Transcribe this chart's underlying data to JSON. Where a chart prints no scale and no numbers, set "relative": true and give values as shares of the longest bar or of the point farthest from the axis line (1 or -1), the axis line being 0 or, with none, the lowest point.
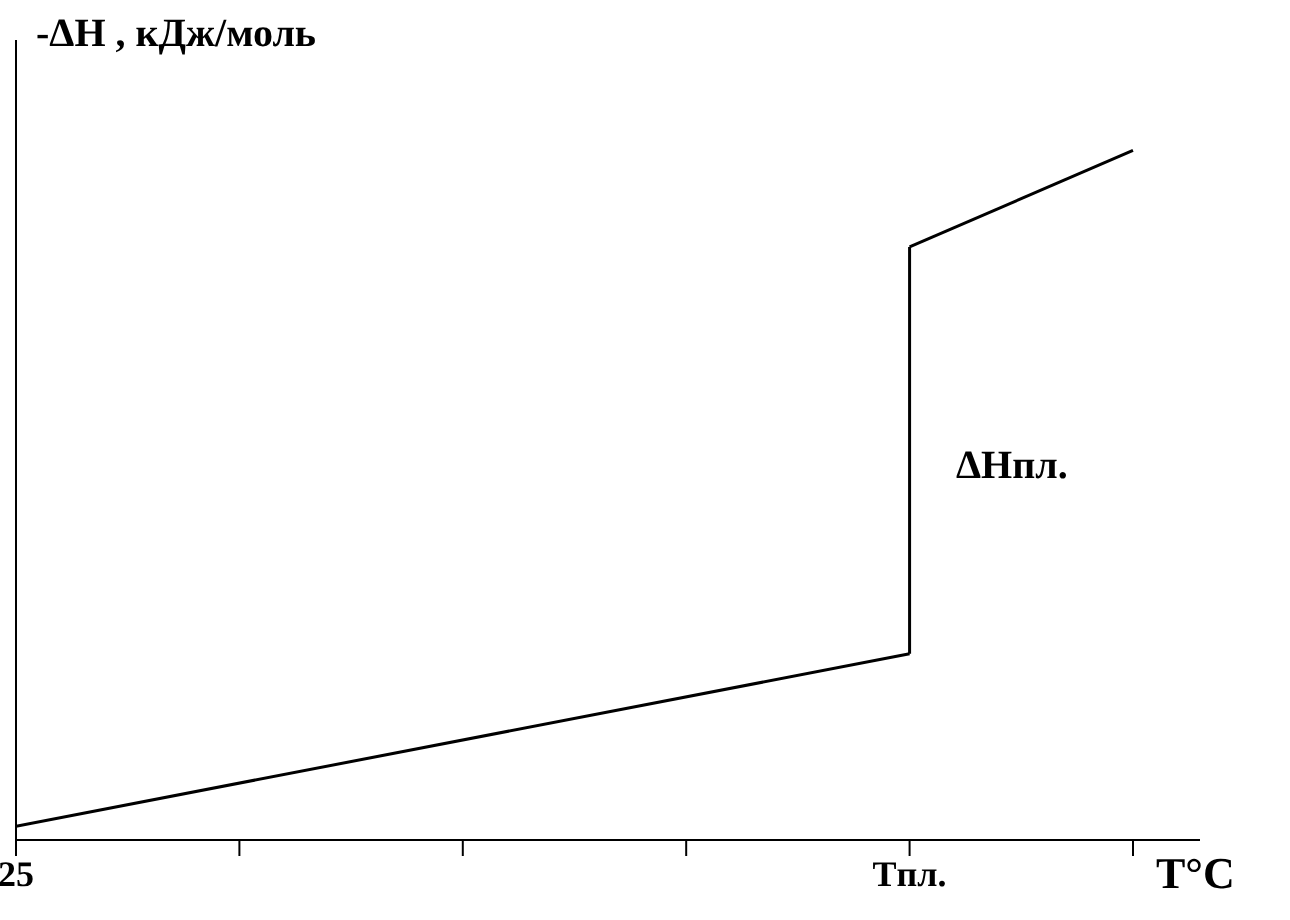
{
  "chart_data": {
    "type": "line",
    "relative": true,
    "ylabel": "-ΔH , кДж/моль",
    "xlabel": "T°C",
    "categories": [
      "25",
      null,
      null,
      null,
      "Tпл.",
      null
    ],
    "series": [
      {
        "color": "#000000",
        "values": [
          0.02,
          null,
          null,
          null,
          0.27,
          null
        ]
      },
      {
        "color": "#000000",
        "values": [
          null,
          null,
          null,
          null,
          0.86,
          1
        ]
      }
    ],
    "annotations": [
      "ΔHпл."
    ],
    "marker": "none",
    "line_style": "solid"
  }
}
